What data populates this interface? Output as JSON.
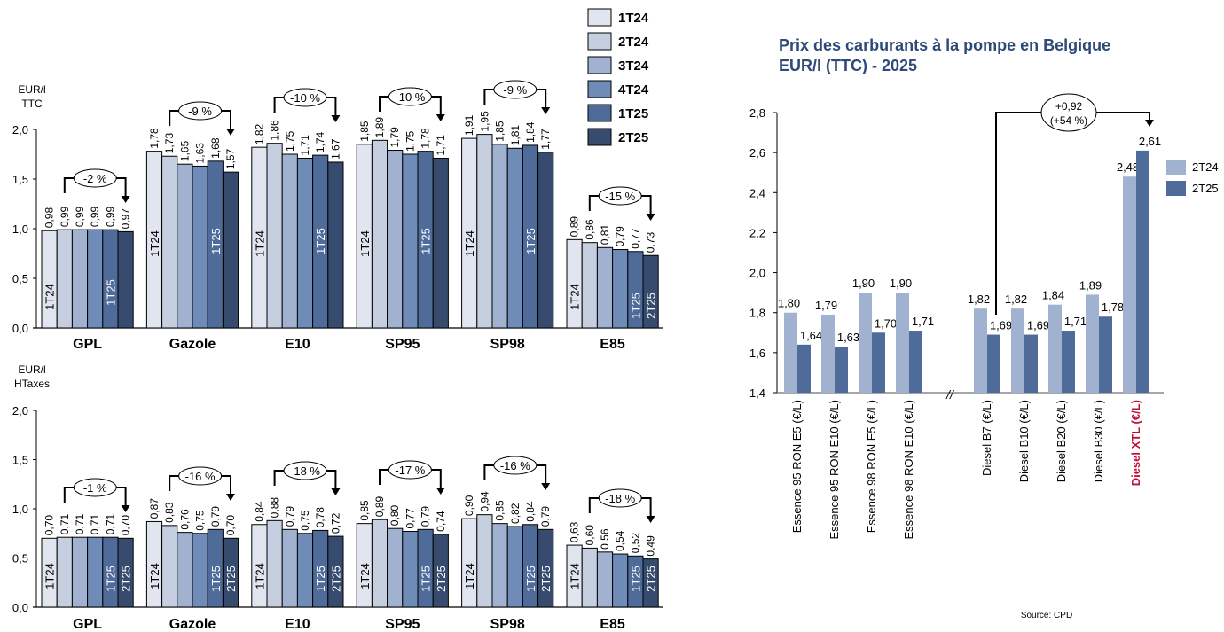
{
  "chart_data": [
    {
      "id": "ttc",
      "type": "bar",
      "unit_label": [
        "EUR/l",
        "TTC"
      ],
      "ylim": [
        0,
        2.0
      ],
      "yticks": [
        "0,0",
        "0,5",
        "1,0",
        "1,5",
        "2,0"
      ],
      "ytick_values": [
        0,
        0.5,
        1.0,
        1.5,
        2.0
      ],
      "categories": [
        "GPL",
        "Gazole",
        "E10",
        "SP95",
        "SP98",
        "E85"
      ],
      "series": [
        {
          "name": "1T24",
          "values": [
            0.98,
            1.78,
            1.82,
            1.85,
            1.91,
            0.89
          ],
          "labels": [
            "0,98",
            "1,78",
            "1,82",
            "1,85",
            "1,91",
            "0,89"
          ]
        },
        {
          "name": "2T24",
          "values": [
            0.99,
            1.73,
            1.86,
            1.89,
            1.95,
            0.86
          ],
          "labels": [
            "0,99",
            "1,73",
            "1,86",
            "1,89",
            "1,95",
            "0,86"
          ]
        },
        {
          "name": "3T24",
          "values": [
            0.99,
            1.65,
            1.75,
            1.79,
            1.85,
            0.81
          ],
          "labels": [
            "0,99",
            "1,65",
            "1,75",
            "1,79",
            "1,85",
            "0,81"
          ]
        },
        {
          "name": "4T24",
          "values": [
            0.99,
            1.63,
            1.71,
            1.75,
            1.81,
            0.79
          ],
          "labels": [
            "0,99",
            "1,63",
            "1,71",
            "1,75",
            "1,81",
            "0,79"
          ]
        },
        {
          "name": "1T25",
          "values": [
            0.99,
            1.68,
            1.74,
            1.78,
            1.84,
            0.77
          ],
          "labels": [
            "0,99",
            "1,68",
            "1,74",
            "1,78",
            "1,84",
            "0,77"
          ]
        },
        {
          "name": "2T25",
          "values": [
            0.97,
            1.57,
            1.67,
            1.71,
            1.77,
            0.73
          ],
          "labels": [
            "0,97",
            "1,57",
            "1,67",
            "1,71",
            "1,77",
            "0,73"
          ]
        }
      ],
      "inbar_labels": [
        [
          "1T24",
          "1T25"
        ],
        [
          "1T24",
          "1T25"
        ],
        [
          "1T24",
          "1T25"
        ],
        [
          "1T24",
          "1T25"
        ],
        [
          "1T24",
          "1T25"
        ],
        [
          "1T24",
          "1T25",
          "2T25"
        ]
      ],
      "annotations": [
        "-2 %",
        "-9 %",
        "-10 %",
        "-10 %",
        "-9 %",
        "-15 %"
      ],
      "legend": [
        "1T24",
        "2T24",
        "3T24",
        "4T24",
        "1T25",
        "2T25"
      ],
      "legend_position": "top-right"
    },
    {
      "id": "htaxes",
      "type": "bar",
      "unit_label": [
        "EUR/l",
        "HTaxes"
      ],
      "ylim": [
        0,
        2.0
      ],
      "yticks": [
        "0,0",
        "0,5",
        "1,0",
        "1,5",
        "2,0"
      ],
      "ytick_values": [
        0,
        0.5,
        1.0,
        1.5,
        2.0
      ],
      "categories": [
        "GPL",
        "Gazole",
        "E10",
        "SP95",
        "SP98",
        "E85"
      ],
      "series": [
        {
          "name": "1T24",
          "values": [
            0.7,
            0.87,
            0.84,
            0.85,
            0.9,
            0.63
          ],
          "labels": [
            "0,70",
            "0,87",
            "0,84",
            "0,85",
            "0,90",
            "0,63"
          ]
        },
        {
          "name": "2T24",
          "values": [
            0.71,
            0.83,
            0.88,
            0.89,
            0.94,
            0.6
          ],
          "labels": [
            "0,71",
            "0,83",
            "0,88",
            "0,89",
            "0,94",
            "0,60"
          ]
        },
        {
          "name": "3T24",
          "values": [
            0.71,
            0.76,
            0.79,
            0.8,
            0.85,
            0.56
          ],
          "labels": [
            "0,71",
            "0,76",
            "0,79",
            "0,80",
            "0,85",
            "0,56"
          ]
        },
        {
          "name": "4T24",
          "values": [
            0.71,
            0.75,
            0.75,
            0.77,
            0.82,
            0.54
          ],
          "labels": [
            "0,71",
            "0,75",
            "0,75",
            "0,77",
            "0,82",
            "0,54"
          ]
        },
        {
          "name": "1T25",
          "values": [
            0.71,
            0.79,
            0.78,
            0.79,
            0.84,
            0.52
          ],
          "labels": [
            "0,71",
            "0,79",
            "0,78",
            "0,79",
            "0,84",
            "0,52"
          ]
        },
        {
          "name": "2T25",
          "values": [
            0.7,
            0.7,
            0.72,
            0.74,
            0.79,
            0.49
          ],
          "labels": [
            "0,70",
            "0,70",
            "0,72",
            "0,74",
            "0,79",
            "0,49"
          ]
        }
      ],
      "inbar_labels": [
        [
          "1T24",
          "1T25",
          "2T25"
        ],
        [
          "1T24",
          "1T25",
          "2T25"
        ],
        [
          "1T24",
          "1T25",
          "2T25"
        ],
        [
          "1T24",
          "1T25",
          "2T25"
        ],
        [
          "1T24",
          "1T25",
          "2T25"
        ],
        [
          "1T24",
          "1T25",
          "2T25"
        ]
      ],
      "annotations": [
        "-1 %",
        "-16 %",
        "-18 %",
        "-17 %",
        "-16 %",
        "-18 %"
      ]
    },
    {
      "id": "belgique",
      "type": "bar",
      "title": [
        "Prix des carburants à la pompe en Belgique",
        "EUR/l (TTC) - 2025"
      ],
      "ylim": [
        1.4,
        2.8
      ],
      "yticks": [
        "1,4",
        "1,6",
        "1,8",
        "2,0",
        "2,2",
        "2,4",
        "2,6",
        "2,8"
      ],
      "ytick_values": [
        1.4,
        1.6,
        1.8,
        2.0,
        2.2,
        2.4,
        2.6,
        2.8
      ],
      "categories": [
        "Essence 95 RON E5 (€/L)",
        "Essence 95 RON E10 (€/L)",
        "Essence 98 RON E5 (€/L)",
        "Essence 98 RON E10 (€/L)",
        "Diesel B7 (€/L)",
        "Diesel B10 (€/L)",
        "Diesel B20 (€/L)",
        "Diesel B30 (€/L)",
        "Diesel XTL (€/L)"
      ],
      "highlight_category": "Diesel XTL (€/L)",
      "axis_break_after": "Essence 98 RON E10 (€/L)",
      "axis_break_symbol": "//",
      "series": [
        {
          "name": "2T24",
          "values": [
            1.8,
            1.79,
            1.9,
            1.9,
            1.82,
            1.82,
            1.84,
            1.89,
            2.48
          ],
          "labels": [
            "1,80",
            "1,79",
            "1,90",
            "1,90",
            "1,82",
            "1,82",
            "1,84",
            "1,89",
            "2,48"
          ]
        },
        {
          "name": "2T25",
          "values": [
            1.64,
            1.63,
            1.7,
            1.71,
            1.69,
            1.69,
            1.71,
            1.78,
            2.61
          ],
          "labels": [
            "1,64",
            "1,63",
            "1,70",
            "1,71",
            "1,69",
            "1,69",
            "1,71",
            "1,78",
            "2,61"
          ]
        }
      ],
      "annotation": {
        "from": "Diesel B7 (€/L)",
        "to": "Diesel XTL (€/L)",
        "lines": [
          "+0,92",
          "(+54 %)"
        ]
      },
      "legend": [
        "2T24",
        "2T25"
      ],
      "legend_position": "right",
      "source": "Source: CPD"
    }
  ],
  "colors": {
    "left_series": [
      "#e0e5ef",
      "#c6cfe0",
      "#a1b2d0",
      "#6f8cb8",
      "#4e6b9a",
      "#364b6e"
    ],
    "right_series": [
      "#a1b2d0",
      "#4e6b9a"
    ],
    "title": "#2e4a78",
    "highlight": "#c0113a",
    "axis": "#000000"
  }
}
